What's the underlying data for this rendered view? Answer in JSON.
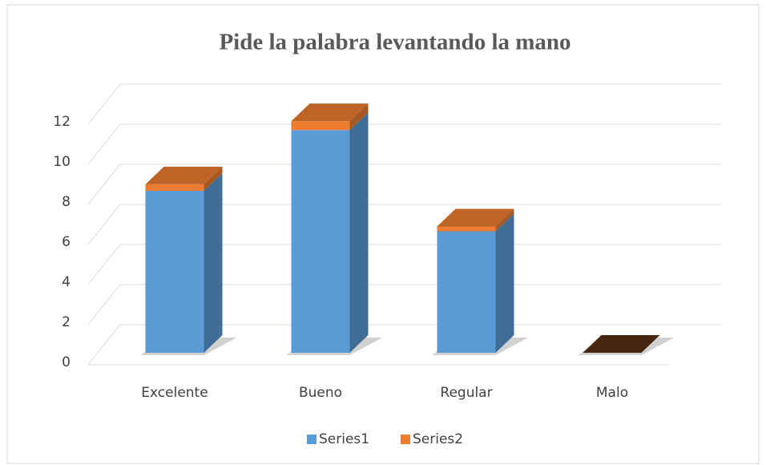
{
  "chart_data": {
    "type": "bar3d_stacked",
    "title": "Pide la palabra levantando la mano",
    "categories": [
      "Excelente",
      "Bueno",
      "Regular",
      "Malo"
    ],
    "series": [
      {
        "name": "Series1",
        "color": "#5b9bd5",
        "values": [
          8,
          11,
          6,
          0
        ]
      },
      {
        "name": "Series2",
        "color": "#ed7d31",
        "values": [
          0.32,
          0.44,
          0.24,
          0
        ]
      }
    ],
    "ylim": [
      0,
      12
    ],
    "yticks": [
      0,
      2,
      4,
      6,
      8,
      10,
      12
    ],
    "grid": true,
    "legend": "bottom"
  }
}
